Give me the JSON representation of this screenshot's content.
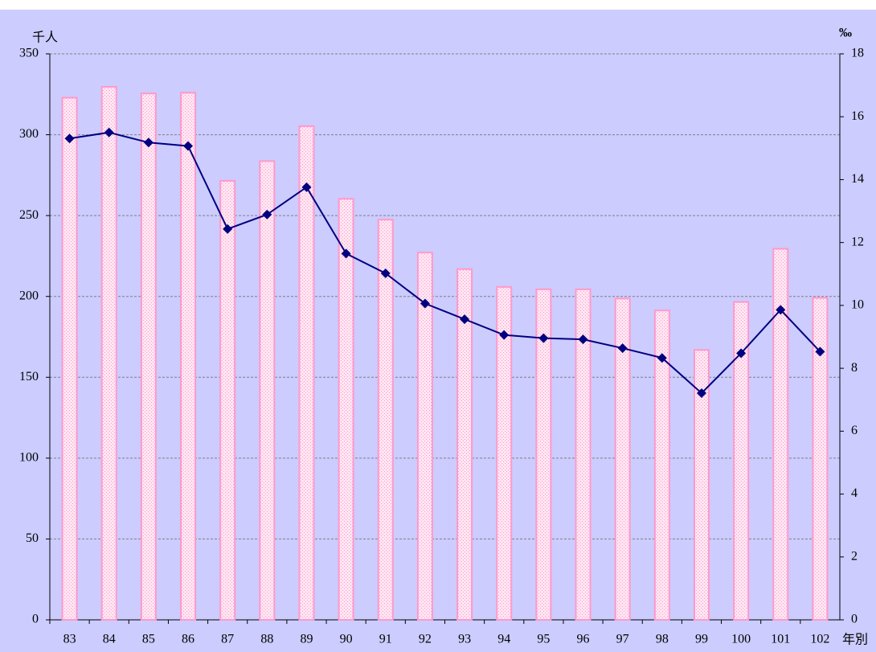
{
  "chart_data": {
    "type": "bar_line",
    "y_label": "千人",
    "y2_label": "‰",
    "x_label": "年別",
    "categories": [
      "83",
      "84",
      "85",
      "86",
      "87",
      "88",
      "89",
      "90",
      "91",
      "92",
      "93",
      "94",
      "95",
      "96",
      "97",
      "98",
      "99",
      "100",
      "101",
      "102"
    ],
    "series": [
      {
        "type": "bar",
        "color": "#ff99cc",
        "values": [
          322.9,
          329.6,
          325.5,
          326.0,
          271.5,
          283.7,
          305.3,
          260.4,
          247.5,
          227.1,
          216.9,
          205.9,
          204.4,
          204.4,
          198.7,
          191.3,
          166.9,
          196.6,
          229.5,
          199.1
        ]
      },
      {
        "type": "line",
        "axis": "y2",
        "color": "#000080",
        "values": [
          15.31,
          15.5,
          15.18,
          15.07,
          12.43,
          12.89,
          13.76,
          11.65,
          11.02,
          10.06,
          9.56,
          9.06,
          8.96,
          8.92,
          8.64,
          8.33,
          7.21,
          8.48,
          9.86,
          8.53
        ]
      }
    ],
    "ylim": [
      0,
      350
    ],
    "yticks": [
      0,
      50,
      100,
      150,
      200,
      250,
      300,
      350
    ],
    "y2lim": [
      0,
      18
    ],
    "y2ticks": [
      0,
      2,
      4,
      6,
      8,
      10,
      12,
      14,
      16,
      18
    ],
    "grid": true,
    "background": "#ccccff"
  }
}
